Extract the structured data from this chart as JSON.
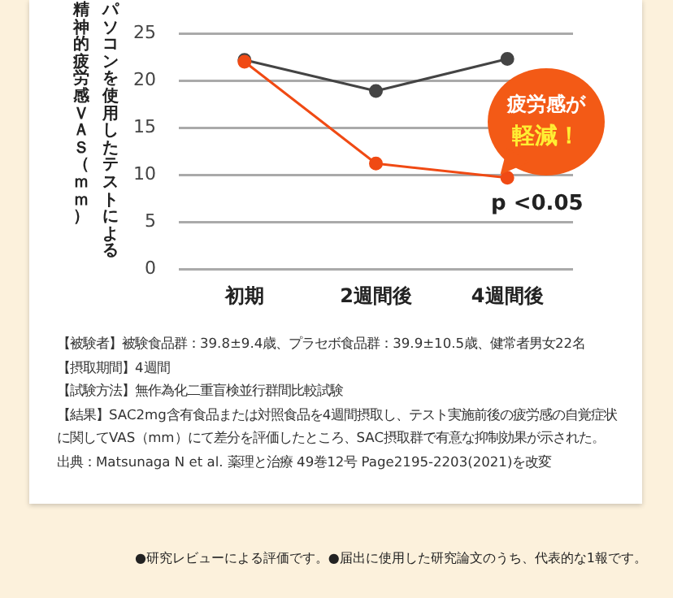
{
  "chart_data": {
    "type": "line",
    "ylabel": "パソコンを使用したテストによる精神的疲労感ＶＡＳ（ｍｍ）",
    "categories": [
      "初期",
      "2週間後",
      "4週間後"
    ],
    "series": [
      {
        "color": "#444444",
        "values": [
          22.2,
          18.9,
          22.3
        ]
      },
      {
        "color": "#f04a14",
        "values": [
          22.0,
          11.2,
          9.7
        ]
      }
    ],
    "ylim": [
      0,
      25
    ],
    "yticks": [
      0,
      5,
      10,
      15,
      20,
      25
    ],
    "grid": "y",
    "marker": "circle",
    "line_style": "solid",
    "legend": false,
    "annotations": [
      "疲労感が",
      "軽減！",
      "p <0.05",
      "【被験者】被験食品群：39.8±9.4歳、プラセボ食品群：39.9±10.5歳、健常者男女22名",
      "【摂取期間】4週間",
      "【試験方法】無作為化二重盲検並行群間比較試験",
      "【結果】SAC2mg含有食品または対照食品を4週間摂取し、テスト実施前後の疲労感の自覚症状に関してVAS（mm）にて差分を評価したところ、SAC摂取群で有意な抑制効果が示された。",
      "出典：Matsunaga N et al. 薬理と治療 49巻12号 Page2195-2203(2021)を改変",
      "●研究レビューによる評価です。●届出に使用した研究論文のうち、代表的な1報です。"
    ]
  }
}
